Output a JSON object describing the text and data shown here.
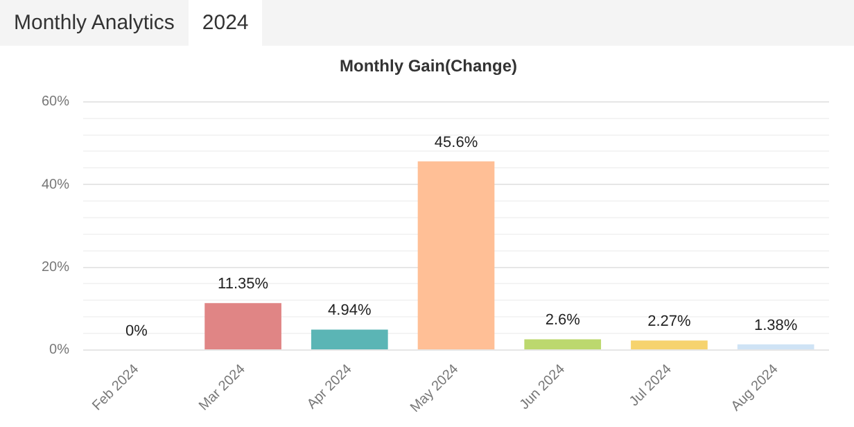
{
  "chart_data": {
    "type": "bar",
    "title": "Monthly Gain(Change)",
    "annotations": [
      "Monthly Analytics",
      "2024"
    ],
    "categories": [
      "Feb 2024",
      "Mar 2024",
      "Apr 2024",
      "May 2024",
      "Jun 2024",
      "Jul 2024",
      "Aug 2024"
    ],
    "values": [
      0,
      11.35,
      4.94,
      45.6,
      2.6,
      2.27,
      1.38
    ],
    "value_labels": [
      "0%",
      "11.35%",
      "4.94%",
      "45.6%",
      "2.6%",
      "2.27%",
      "1.38%"
    ],
    "colors": [
      "#a6c8e8",
      "#e08585",
      "#5bb5b5",
      "#ffbf96",
      "#bcd86e",
      "#f6d36e",
      "#cfe3f5"
    ],
    "ylim": [
      0,
      60
    ],
    "yticks": [
      {
        "value": 0,
        "label": "0%"
      },
      {
        "value": 4,
        "label": null
      },
      {
        "value": 8,
        "label": null
      },
      {
        "value": 12,
        "label": null
      },
      {
        "value": 16,
        "label": null
      },
      {
        "value": 20,
        "label": "20%"
      },
      {
        "value": 24,
        "label": null
      },
      {
        "value": 28,
        "label": null
      },
      {
        "value": 32,
        "label": null
      },
      {
        "value": 36,
        "label": null
      },
      {
        "value": 40,
        "label": "40%"
      },
      {
        "value": 44,
        "label": null
      },
      {
        "value": 48,
        "label": null
      },
      {
        "value": 52,
        "label": null
      },
      {
        "value": 56,
        "label": null
      },
      {
        "value": 60,
        "label": "60%"
      }
    ],
    "grid": "y",
    "legend": false
  }
}
